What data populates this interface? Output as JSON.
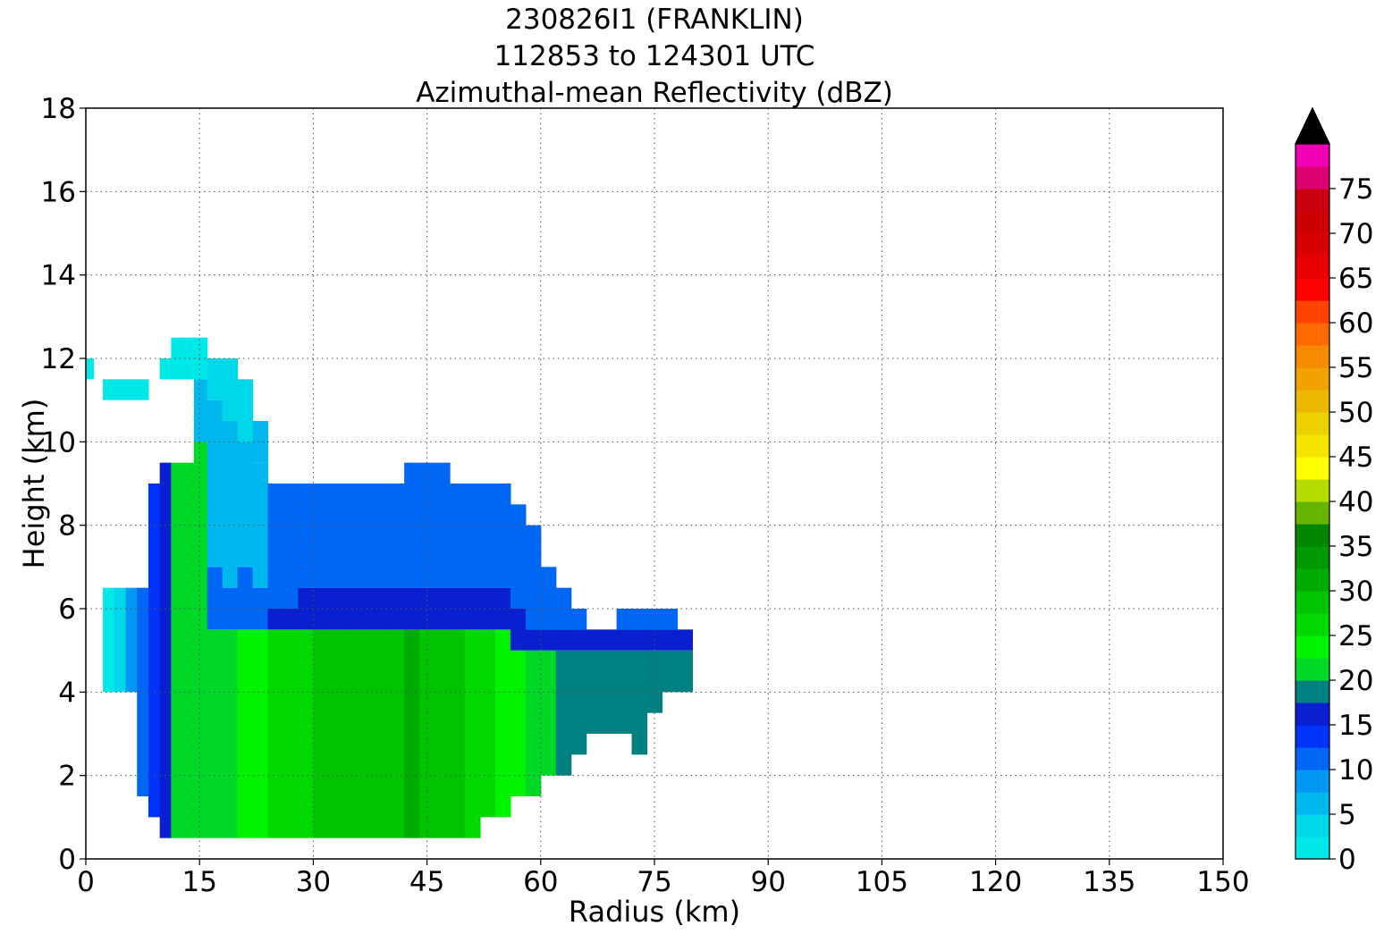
{
  "chart_data": {
    "type": "heatmap",
    "title_lines": [
      "230826I1 (FRANKLIN)",
      "112853 to 124301 UTC",
      "Azimuthal-mean Reflectivity (dBZ)"
    ],
    "xlabel": "Radius (km)",
    "ylabel": "Height (km)",
    "xlim": [
      0,
      150
    ],
    "ylim": [
      0,
      18
    ],
    "xticks": [
      0,
      15,
      30,
      45,
      60,
      75,
      90,
      105,
      120,
      135,
      150
    ],
    "yticks": [
      0,
      2,
      4,
      6,
      8,
      10,
      12,
      14,
      16,
      18
    ],
    "grid": true,
    "colorbar": {
      "min": 0,
      "max": 80,
      "step": 2.5,
      "ticks": [
        0,
        5,
        10,
        15,
        20,
        25,
        30,
        35,
        40,
        45,
        50,
        55,
        60,
        65,
        70,
        75
      ],
      "extend": "max",
      "colors": [
        "#00e8e8",
        "#00d8ea",
        "#00b8ee",
        "#0098f2",
        "#0066f4",
        "#0033f8",
        "#0a1fd0",
        "#008080",
        "#00d828",
        "#00f400",
        "#00d800",
        "#00c400",
        "#00ac00",
        "#009800",
        "#008600",
        "#64b400",
        "#b4dc00",
        "#ffff00",
        "#f4e400",
        "#ecd000",
        "#eab800",
        "#f2a200",
        "#f68a00",
        "#fe6a00",
        "#ff4400",
        "#ff0000",
        "#e80000",
        "#d80000",
        "#cc0000",
        "#c80010",
        "#dc0070",
        "#f000b4",
        "#ec00e8",
        "#d032e4",
        "#a852cc",
        "#7a3ea2",
        "#3e1e4c"
      ],
      "over_color": "#000000"
    },
    "profile_radii_km": [
      0.5,
      1.5,
      3,
      4.5,
      6,
      7.5,
      9,
      10.5,
      12,
      13.5,
      15,
      17,
      19,
      21,
      23,
      25,
      27,
      29,
      31,
      33,
      35,
      37,
      39,
      41,
      43,
      45,
      47,
      49,
      51,
      53,
      55,
      57,
      59,
      61,
      63,
      65,
      67,
      69,
      71,
      73,
      75,
      77,
      79
    ],
    "profiles": [
      [
        [
          11.5,
          12.0,
          0.5
        ]
      ],
      [],
      [
        [
          4.0,
          6.5,
          1.5
        ],
        [
          11.0,
          11.5,
          0.5
        ]
      ],
      [
        [
          4.0,
          6.5,
          4.0
        ],
        [
          11.0,
          11.5,
          0.5
        ]
      ],
      [
        [
          4.0,
          6.5,
          8.0
        ],
        [
          11.0,
          11.5,
          0.5
        ]
      ],
      [
        [
          1.5,
          6.5,
          12.0
        ],
        [
          11.0,
          11.5,
          0.5
        ]
      ],
      [
        [
          1.0,
          9.0,
          14.0
        ],
        [
          11.5,
          11.5,
          0.5
        ]
      ],
      [
        [
          0.5,
          9.5,
          17.0
        ],
        [
          11.5,
          12.0,
          0.5
        ]
      ],
      [
        [
          0.5,
          9.5,
          20.0
        ],
        [
          11.5,
          12.5,
          0.5
        ]
      ],
      [
        [
          0.5,
          9.5,
          20.0
        ],
        [
          11.5,
          12.5,
          0.5
        ]
      ],
      [
        [
          0.5,
          10.0,
          20.0
        ],
        [
          10.0,
          11.5,
          5.0
        ],
        [
          11.5,
          12.5,
          0.5
        ]
      ],
      [
        [
          0.5,
          5.5,
          20.0
        ],
        [
          5.5,
          7.0,
          11.0
        ],
        [
          7.0,
          11.0,
          5.0
        ],
        [
          11.0,
          12.0,
          3.0
        ]
      ],
      [
        [
          0.5,
          5.5,
          22.0
        ],
        [
          5.5,
          6.5,
          12.0
        ],
        [
          6.5,
          10.5,
          6.0
        ],
        [
          10.5,
          12.0,
          4.0
        ]
      ],
      [
        [
          0.5,
          5.5,
          22.5
        ],
        [
          5.5,
          7.0,
          11.0
        ],
        [
          7.0,
          10.0,
          5.0
        ],
        [
          10.0,
          11.5,
          3.0
        ]
      ],
      [
        [
          0.5,
          5.5,
          22.5
        ],
        [
          5.5,
          6.5,
          11.0
        ],
        [
          6.5,
          9.5,
          7.0
        ],
        [
          9.5,
          10.5,
          5.0
        ]
      ],
      [
        [
          0.5,
          5.5,
          25.0
        ],
        [
          5.5,
          6.0,
          16.0
        ],
        [
          6.0,
          9.0,
          11.0
        ]
      ],
      [
        [
          0.5,
          5.5,
          25.0
        ],
        [
          5.5,
          6.0,
          16.0
        ],
        [
          6.0,
          9.0,
          11.0
        ]
      ],
      [
        [
          0.5,
          5.5,
          25.0
        ],
        [
          5.5,
          6.5,
          16.0
        ],
        [
          6.5,
          9.0,
          12.0
        ]
      ],
      [
        [
          0.5,
          5.5,
          27.5
        ],
        [
          5.5,
          6.5,
          16.0
        ],
        [
          6.5,
          9.0,
          12.0
        ]
      ],
      [
        [
          0.5,
          5.5,
          27.5
        ],
        [
          5.5,
          6.5,
          16.0
        ],
        [
          6.5,
          9.0,
          12.0
        ]
      ],
      [
        [
          0.5,
          5.5,
          27.5
        ],
        [
          5.5,
          6.5,
          16.0
        ],
        [
          6.5,
          9.0,
          11.0
        ]
      ],
      [
        [
          0.5,
          5.5,
          27.5
        ],
        [
          5.5,
          6.5,
          16.0
        ],
        [
          6.5,
          9.0,
          11.0
        ]
      ],
      [
        [
          0.5,
          5.5,
          27.5
        ],
        [
          5.5,
          6.5,
          16.0
        ],
        [
          6.5,
          9.0,
          12.0
        ]
      ],
      [
        [
          0.5,
          5.5,
          27.5
        ],
        [
          5.5,
          6.5,
          16.0
        ],
        [
          6.5,
          9.0,
          12.0
        ]
      ],
      [
        [
          0.5,
          5.5,
          30.0
        ],
        [
          5.5,
          6.5,
          16.0
        ],
        [
          6.5,
          9.5,
          12.0
        ]
      ],
      [
        [
          0.5,
          5.5,
          27.5
        ],
        [
          5.5,
          6.5,
          16.0
        ],
        [
          6.5,
          9.5,
          12.0
        ]
      ],
      [
        [
          0.5,
          5.5,
          27.5
        ],
        [
          5.5,
          6.5,
          16.0
        ],
        [
          6.5,
          9.5,
          12.0
        ]
      ],
      [
        [
          0.5,
          5.5,
          27.5
        ],
        [
          5.5,
          6.5,
          16.0
        ],
        [
          6.5,
          9.0,
          11.0
        ]
      ],
      [
        [
          0.5,
          5.5,
          25.0
        ],
        [
          5.5,
          6.5,
          16.0
        ],
        [
          6.5,
          9.0,
          11.0
        ]
      ],
      [
        [
          1.0,
          5.5,
          25.0
        ],
        [
          5.5,
          6.5,
          16.0
        ],
        [
          6.5,
          9.0,
          11.0
        ]
      ],
      [
        [
          1.0,
          5.5,
          22.5
        ],
        [
          5.5,
          6.5,
          16.0
        ],
        [
          6.5,
          9.0,
          11.0
        ]
      ],
      [
        [
          1.5,
          5.0,
          22.5
        ],
        [
          5.0,
          6.0,
          16.0
        ],
        [
          6.0,
          8.5,
          11.0
        ]
      ],
      [
        [
          1.5,
          5.0,
          20.0
        ],
        [
          5.0,
          5.5,
          16.0
        ],
        [
          5.5,
          8.0,
          11.0
        ]
      ],
      [
        [
          2.0,
          5.0,
          20.0
        ],
        [
          5.0,
          5.5,
          16.0
        ],
        [
          5.5,
          7.0,
          11.0
        ]
      ],
      [
        [
          2.0,
          5.0,
          19.0
        ],
        [
          5.0,
          5.5,
          16.0
        ],
        [
          5.5,
          6.5,
          11.0
        ]
      ],
      [
        [
          2.5,
          5.0,
          19.0
        ],
        [
          5.0,
          5.5,
          16.0
        ],
        [
          5.5,
          6.0,
          11.0
        ]
      ],
      [
        [
          3.0,
          5.0,
          19.0
        ],
        [
          5.0,
          5.5,
          16.0
        ]
      ],
      [
        [
          3.0,
          5.0,
          19.0
        ],
        [
          5.0,
          5.5,
          16.0
        ]
      ],
      [
        [
          3.0,
          5.0,
          19.0
        ],
        [
          5.0,
          5.5,
          16.0
        ],
        [
          5.5,
          6.0,
          11.0
        ]
      ],
      [
        [
          2.5,
          5.0,
          19.0
        ],
        [
          5.0,
          5.5,
          16.0
        ],
        [
          5.5,
          6.0,
          11.0
        ]
      ],
      [
        [
          3.5,
          5.0,
          18.0
        ],
        [
          5.0,
          5.5,
          16.0
        ],
        [
          5.5,
          6.0,
          11.0
        ]
      ],
      [
        [
          4.0,
          5.0,
          18.0
        ],
        [
          5.0,
          5.5,
          16.0
        ],
        [
          5.5,
          6.0,
          11.0
        ]
      ],
      [
        [
          4.0,
          5.0,
          18.0
        ],
        [
          5.0,
          5.5,
          16.0
        ]
      ]
    ]
  }
}
